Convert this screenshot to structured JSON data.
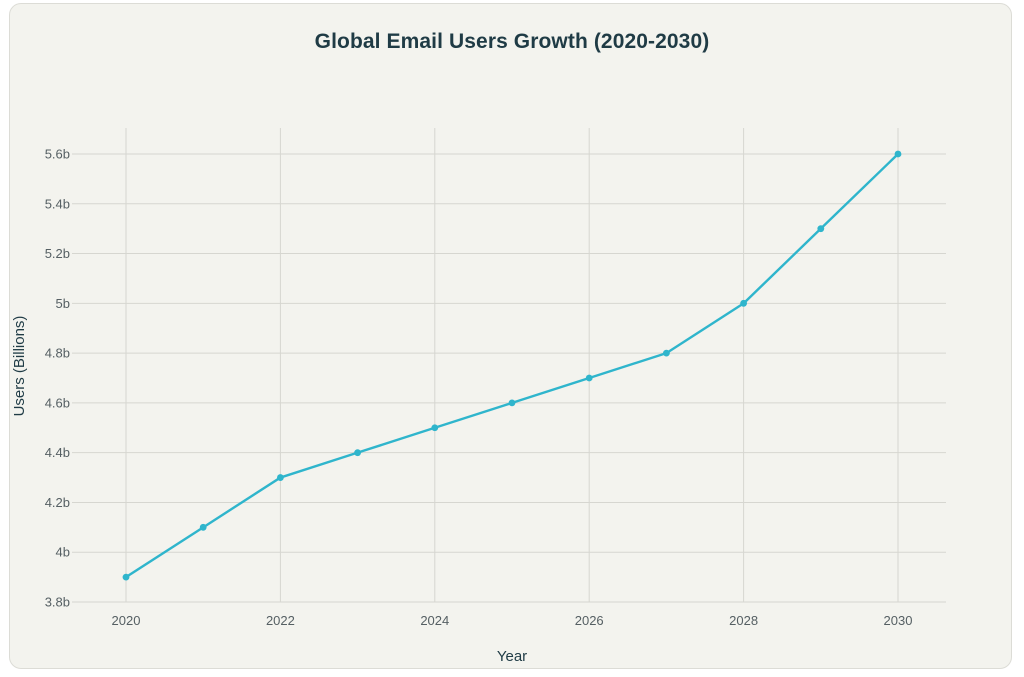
{
  "chart_data": {
    "type": "line",
    "title": "Global Email Users Growth (2020-2030)",
    "xlabel": "Year",
    "ylabel": "Users (Billions)",
    "x": [
      2020,
      2021,
      2022,
      2023,
      2024,
      2025,
      2026,
      2027,
      2028,
      2029,
      2030
    ],
    "series": [
      {
        "values": [
          3.9,
          4.1,
          4.3,
          4.4,
          4.5,
          4.6,
          4.7,
          4.8,
          5.0,
          5.3,
          5.6
        ]
      }
    ],
    "xticks": [
      "2020",
      "2022",
      "2024",
      "2026",
      "2028",
      "2030"
    ],
    "yticks": [
      "3.8b",
      "4b",
      "4.2b",
      "4.4b",
      "4.6b",
      "4.8b",
      "5b",
      "5.2b",
      "5.4b",
      "5.6b"
    ],
    "ylim": [
      3.8,
      5.6
    ],
    "xlim": [
      2020,
      2030
    ],
    "grid": true,
    "line_color": "#2fb5cc"
  }
}
